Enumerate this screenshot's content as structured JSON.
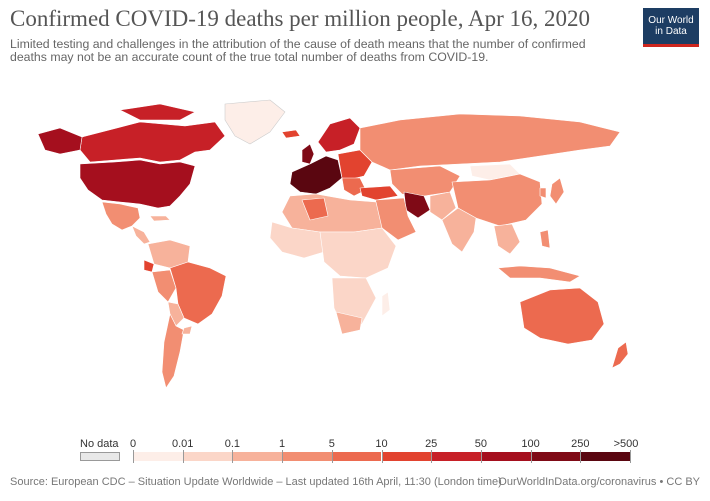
{
  "header": {
    "title": "Confirmed COVID-19 deaths per million people, Apr 16, 2020",
    "subtitle": "Limited testing and challenges in the attribution of the cause of death means that the number of confirmed deaths may not be an accurate count of the true total number of deaths from COVID-19."
  },
  "logo": {
    "line1": "Our World",
    "line2": "in Data",
    "bg": "#1d3d63",
    "accent": "#ce261e"
  },
  "legend": {
    "no_data_label": "No data",
    "no_data_color": "#e8e8e8",
    "ticks": [
      "0",
      "0.01",
      "0.1",
      "1",
      "5",
      "10",
      "25",
      "50",
      "100",
      "250",
      ">500"
    ],
    "colors": [
      "#fdeee8",
      "#fbd6c8",
      "#f7b29b",
      "#f28e72",
      "#ec6a4f",
      "#e2432f",
      "#c72027",
      "#a50f1e",
      "#7f0a16",
      "#5a0610"
    ]
  },
  "footer": {
    "source": "Source: European CDC – Situation Update Worldwide – Last updated 16th April, 11:30 (London time)",
    "credit": "OurWorldInData.org/coronavirus • CC BY"
  }
}
